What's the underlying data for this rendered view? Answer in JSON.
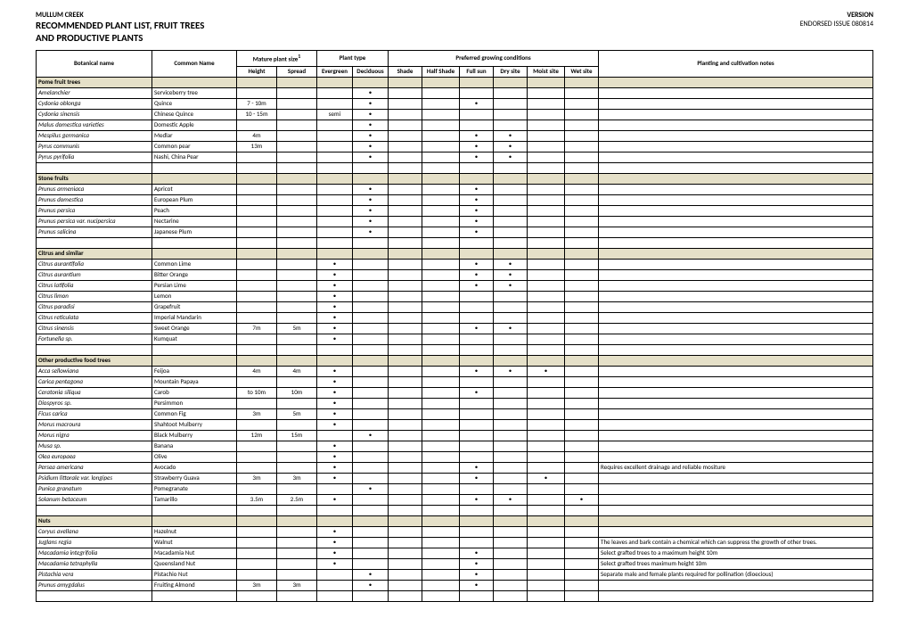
{
  "header": {
    "org": "MULLUM CREEK",
    "title1": "RECOMMENDED PLANT LIST, FRUIT TREES",
    "title2": "AND PRODUCTIVE PLANTS",
    "version": "VERSION",
    "issue": "ENDORSED ISSUE 080814"
  },
  "columns": {
    "botanical": "Botanical name",
    "common": "Common Name",
    "size_group": "Mature plant size",
    "size_sup": "1",
    "height": "Height",
    "spread": "Spread",
    "type_group": "Plant type",
    "evergreen": "Evergreen",
    "deciduous": "Deciduous",
    "cond_group": "Preferred growing conditions",
    "shade": "Shade",
    "half_shade": "Half Shade",
    "full_sun": "Full sun",
    "dry": "Dry site",
    "moist": "Moist site",
    "wet": "Wet site",
    "notes": "Planting and cultivation notes"
  },
  "dot": "•",
  "sections": [
    {
      "title": "Pome fruit trees",
      "rows": [
        {
          "b": "Amelanchier",
          "c": "Serviceberry tree",
          "h": "",
          "s": "",
          "e": false,
          "d": true,
          "sh": false,
          "hs": false,
          "fs": false,
          "dr": false,
          "mo": false,
          "we": false,
          "n": ""
        },
        {
          "b": "Cydonia oblonga",
          "c": "Quince",
          "h": "7 - 10m",
          "s": "",
          "e": false,
          "d": true,
          "sh": false,
          "hs": false,
          "fs": true,
          "dr": false,
          "mo": false,
          "we": false,
          "n": ""
        },
        {
          "b": "Cydonia sinensis",
          "c": "Chinese Quince",
          "h": "10 - 15m",
          "s": "",
          "e": "semi",
          "d": true,
          "sh": false,
          "hs": false,
          "fs": false,
          "dr": false,
          "mo": false,
          "we": false,
          "n": ""
        },
        {
          "b": "Malus domestica varieties",
          "c": "Domestic Apple",
          "h": "",
          "s": "",
          "e": false,
          "d": true,
          "sh": false,
          "hs": false,
          "fs": false,
          "dr": false,
          "mo": false,
          "we": false,
          "n": ""
        },
        {
          "b": "Mespilus germanica",
          "c": "Medlar",
          "h": "4m",
          "s": "",
          "e": false,
          "d": true,
          "sh": false,
          "hs": false,
          "fs": true,
          "dr": true,
          "mo": false,
          "we": false,
          "n": ""
        },
        {
          "b": "Pyrus communis",
          "c": "Common pear",
          "h": "13m",
          "s": "",
          "e": false,
          "d": true,
          "sh": false,
          "hs": false,
          "fs": true,
          "dr": true,
          "mo": false,
          "we": false,
          "n": ""
        },
        {
          "b": "Pyrus pyrifolia",
          "c": "Nashi, China Pear",
          "h": "",
          "s": "",
          "e": false,
          "d": true,
          "sh": false,
          "hs": false,
          "fs": true,
          "dr": true,
          "mo": false,
          "we": false,
          "n": ""
        }
      ]
    },
    {
      "title": "Stone fruits",
      "rows": [
        {
          "b": "Prunus armeniaca",
          "c": "Apricot",
          "h": "",
          "s": "",
          "e": false,
          "d": true,
          "sh": false,
          "hs": false,
          "fs": true,
          "dr": false,
          "mo": false,
          "we": false,
          "n": ""
        },
        {
          "b": "Prunus domestica",
          "c": "European Plum",
          "h": "",
          "s": "",
          "e": false,
          "d": true,
          "sh": false,
          "hs": false,
          "fs": true,
          "dr": false,
          "mo": false,
          "we": false,
          "n": ""
        },
        {
          "b": "Prunus persica",
          "c": "Peach",
          "h": "",
          "s": "",
          "e": false,
          "d": true,
          "sh": false,
          "hs": false,
          "fs": true,
          "dr": false,
          "mo": false,
          "we": false,
          "n": ""
        },
        {
          "b": "Prunus persica var. nucipersica",
          "c": "Nectarine",
          "h": "",
          "s": "",
          "e": false,
          "d": true,
          "sh": false,
          "hs": false,
          "fs": true,
          "dr": false,
          "mo": false,
          "we": false,
          "n": ""
        },
        {
          "b": "Prunus salicina",
          "c": "Japanese Plum",
          "h": "",
          "s": "",
          "e": false,
          "d": true,
          "sh": false,
          "hs": false,
          "fs": true,
          "dr": false,
          "mo": false,
          "we": false,
          "n": ""
        }
      ]
    },
    {
      "title": "Citrus and similar",
      "rows": [
        {
          "b": "Citrus aurantifolia",
          "c": "Common Lime",
          "h": "",
          "s": "",
          "e": true,
          "d": false,
          "sh": false,
          "hs": false,
          "fs": true,
          "dr": true,
          "mo": false,
          "we": false,
          "n": ""
        },
        {
          "b": "Citrus aurantium",
          "c": "Bitter Orange",
          "h": "",
          "s": "",
          "e": true,
          "d": false,
          "sh": false,
          "hs": false,
          "fs": true,
          "dr": true,
          "mo": false,
          "we": false,
          "n": ""
        },
        {
          "b": "Citrus latifolia",
          "c": "Persian Lime",
          "h": "",
          "s": "",
          "e": true,
          "d": false,
          "sh": false,
          "hs": false,
          "fs": true,
          "dr": true,
          "mo": false,
          "we": false,
          "n": ""
        },
        {
          "b": "Citrus limon",
          "c": "Lemon",
          "h": "",
          "s": "",
          "e": true,
          "d": false,
          "sh": false,
          "hs": false,
          "fs": false,
          "dr": false,
          "mo": false,
          "we": false,
          "n": ""
        },
        {
          "b": "Citrus paradisi",
          "c": "Grapefruit",
          "h": "",
          "s": "",
          "e": true,
          "d": false,
          "sh": false,
          "hs": false,
          "fs": false,
          "dr": false,
          "mo": false,
          "we": false,
          "n": ""
        },
        {
          "b": "Citrus reticulata",
          "c": "Imperial Mandarin",
          "h": "",
          "s": "",
          "e": true,
          "d": false,
          "sh": false,
          "hs": false,
          "fs": false,
          "dr": false,
          "mo": false,
          "we": false,
          "n": ""
        },
        {
          "b": "Citrus sinensis",
          "c": "Sweet Orange",
          "h": "7m",
          "s": "5m",
          "e": true,
          "d": false,
          "sh": false,
          "hs": false,
          "fs": true,
          "dr": true,
          "mo": false,
          "we": false,
          "n": ""
        },
        {
          "b": "Fortunella sp.",
          "c": "Kumquat",
          "h": "",
          "s": "",
          "e": true,
          "d": false,
          "sh": false,
          "hs": false,
          "fs": false,
          "dr": false,
          "mo": false,
          "we": false,
          "n": ""
        }
      ]
    },
    {
      "title": "Other productive food trees",
      "rows": [
        {
          "b": "Acca sellowiana",
          "c": "Feijoa",
          "h": "4m",
          "s": "4m",
          "e": true,
          "d": false,
          "sh": false,
          "hs": false,
          "fs": true,
          "dr": true,
          "mo": true,
          "we": false,
          "n": ""
        },
        {
          "b": "Carica pentagona",
          "c": "Mountain Papaya",
          "h": "",
          "s": "",
          "e": true,
          "d": false,
          "sh": false,
          "hs": false,
          "fs": false,
          "dr": false,
          "mo": false,
          "we": false,
          "n": ""
        },
        {
          "b": "Ceratonia siliqua",
          "c": "Carob",
          "h": "to 10m",
          "s": "10m",
          "e": true,
          "d": false,
          "sh": false,
          "hs": false,
          "fs": true,
          "dr": false,
          "mo": false,
          "we": false,
          "n": ""
        },
        {
          "b": "Diospyros sp.",
          "c": "Persimmon",
          "h": "",
          "s": "",
          "e": true,
          "d": false,
          "sh": false,
          "hs": false,
          "fs": false,
          "dr": false,
          "mo": false,
          "we": false,
          "n": ""
        },
        {
          "b": "Ficus carica",
          "c": "Common Fig",
          "h": "3m",
          "s": "5m",
          "e": true,
          "d": false,
          "sh": false,
          "hs": false,
          "fs": false,
          "dr": false,
          "mo": false,
          "we": false,
          "n": ""
        },
        {
          "b": "Morus macroura",
          "c": "Shahtoot Mulberry",
          "h": "",
          "s": "",
          "e": true,
          "d": false,
          "sh": false,
          "hs": false,
          "fs": false,
          "dr": false,
          "mo": false,
          "we": false,
          "n": ""
        },
        {
          "b": "Morus nigra",
          "c": "Black Mulberry",
          "h": "12m",
          "s": "15m",
          "e": false,
          "d": true,
          "sh": false,
          "hs": false,
          "fs": false,
          "dr": false,
          "mo": false,
          "we": false,
          "n": ""
        },
        {
          "b": "Musa sp.",
          "c": "Banana",
          "h": "",
          "s": "",
          "e": true,
          "d": false,
          "sh": false,
          "hs": false,
          "fs": false,
          "dr": false,
          "mo": false,
          "we": false,
          "n": ""
        },
        {
          "b": "Olea europaea",
          "c": "Olive",
          "h": "",
          "s": "",
          "e": true,
          "d": false,
          "sh": false,
          "hs": false,
          "fs": false,
          "dr": false,
          "mo": false,
          "we": false,
          "n": ""
        },
        {
          "b": "Persea americana",
          "c": "Avocado",
          "h": "",
          "s": "",
          "e": true,
          "d": false,
          "sh": false,
          "hs": false,
          "fs": true,
          "dr": false,
          "mo": false,
          "we": false,
          "n": "Requires excellent drainage and reliable mositure"
        },
        {
          "b": "Psidium littorale var. longipes",
          "c": "Strawberry Guava",
          "h": "3m",
          "s": "3m",
          "e": true,
          "d": false,
          "sh": false,
          "hs": false,
          "fs": true,
          "dr": false,
          "mo": true,
          "we": false,
          "n": ""
        },
        {
          "b": "Punica granatum",
          "c": "Pomegranate",
          "h": "",
          "s": "",
          "e": false,
          "d": true,
          "sh": false,
          "hs": false,
          "fs": false,
          "dr": false,
          "mo": false,
          "we": false,
          "n": ""
        },
        {
          "b": "Solanum betaceum",
          "c": "Tamarillo",
          "h": "3.5m",
          "s": "2.5m",
          "e": true,
          "d": false,
          "sh": false,
          "hs": false,
          "fs": true,
          "dr": true,
          "mo": false,
          "we": true,
          "n": ""
        }
      ]
    },
    {
      "title": "Nuts",
      "rows": [
        {
          "b": "Coryus avellana",
          "c": "Hazelnut",
          "h": "",
          "s": "",
          "e": true,
          "d": false,
          "sh": false,
          "hs": false,
          "fs": false,
          "dr": false,
          "mo": false,
          "we": false,
          "n": ""
        },
        {
          "b": "Juglans regia",
          "c": "Walnut",
          "h": "",
          "s": "",
          "e": true,
          "d": false,
          "sh": false,
          "hs": false,
          "fs": false,
          "dr": false,
          "mo": false,
          "we": false,
          "n": "The leaves and bark contain a chemical which can suppress the growth of  other trees."
        },
        {
          "b": "Macadamia integrifolia",
          "c": "Macadamia Nut",
          "h": "",
          "s": "",
          "e": true,
          "d": false,
          "sh": false,
          "hs": false,
          "fs": true,
          "dr": false,
          "mo": false,
          "we": false,
          "n": "Select grafted trees to a  maximum height 10m"
        },
        {
          "b": "Macadamia tetraphylla",
          "c": "Queensland Nut",
          "h": "",
          "s": "",
          "e": true,
          "d": false,
          "sh": false,
          "hs": false,
          "fs": true,
          "dr": false,
          "mo": false,
          "we": false,
          "n": "Select grafted trees maximum height 10m"
        },
        {
          "b": "Pistachia vera",
          "c": "Pistachio Nut",
          "h": "",
          "s": "",
          "e": false,
          "d": true,
          "sh": false,
          "hs": false,
          "fs": true,
          "dr": false,
          "mo": false,
          "we": false,
          "n": "Separate male and female plants required for pollination (dioecious)"
        },
        {
          "b": "Prunus amygdalus",
          "c": "Fruiting Almond",
          "h": "3m",
          "s": "3m",
          "e": false,
          "d": true,
          "sh": false,
          "hs": false,
          "fs": true,
          "dr": false,
          "mo": false,
          "we": false,
          "n": ""
        }
      ]
    }
  ]
}
